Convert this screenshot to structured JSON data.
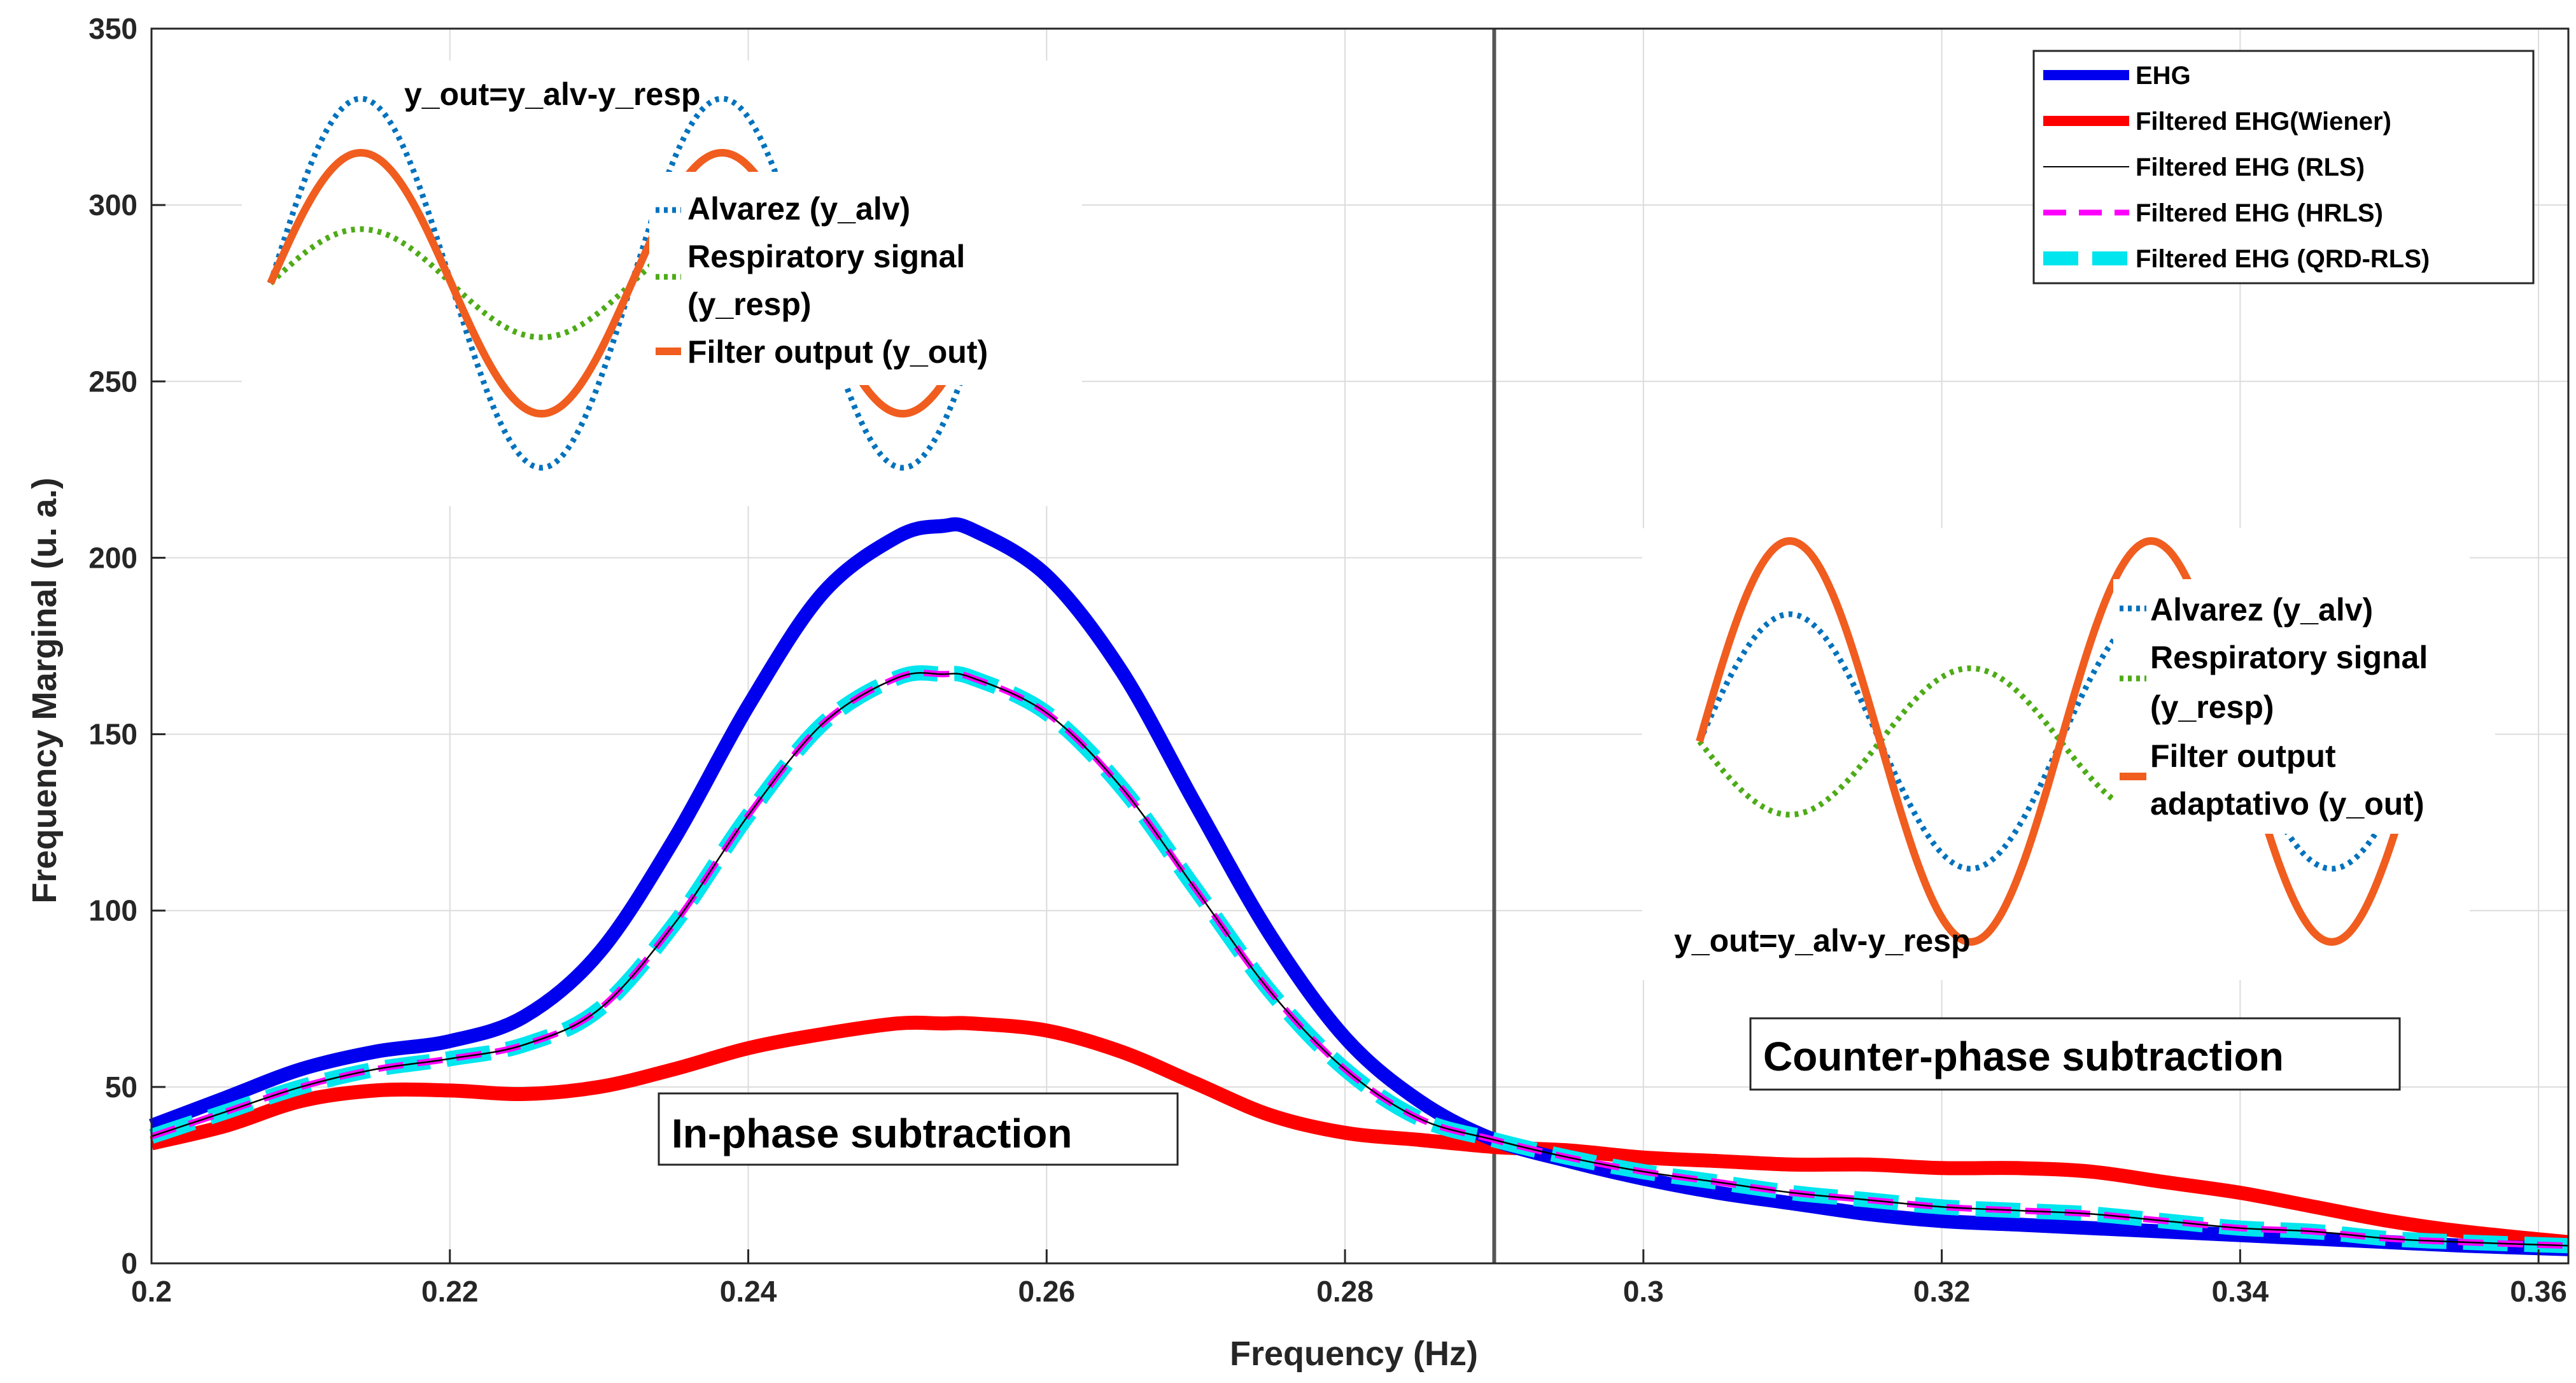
{
  "chart_data": {
    "type": "line",
    "xlabel": "Frequency (Hz)",
    "ylabel": "Frequency Marginal (u. a.)",
    "xlim": [
      0.2,
      0.362
    ],
    "ylim": [
      0,
      350
    ],
    "xticks": [
      0.2,
      0.22,
      0.24,
      0.26,
      0.28,
      0.3,
      0.32,
      0.34,
      0.36
    ],
    "xtick_labels": [
      "0.2",
      "0.22",
      "0.24",
      "0.26",
      "0.28",
      "0.3",
      "0.32",
      "0.34",
      "0.36"
    ],
    "yticks": [
      0,
      50,
      100,
      150,
      200,
      250,
      300,
      350
    ],
    "ytick_labels": [
      "0",
      "50",
      "100",
      "150",
      "200",
      "250",
      "300",
      "350"
    ],
    "grid": true,
    "vertical_line_x": 0.29,
    "legend_position": "top-right",
    "x": [
      0.2,
      0.205,
      0.21,
      0.215,
      0.22,
      0.225,
      0.23,
      0.235,
      0.24,
      0.245,
      0.25,
      0.253,
      0.255,
      0.26,
      0.265,
      0.27,
      0.275,
      0.28,
      0.285,
      0.29,
      0.295,
      0.3,
      0.305,
      0.31,
      0.315,
      0.32,
      0.325,
      0.33,
      0.335,
      0.34,
      0.345,
      0.35,
      0.355,
      0.362
    ],
    "series": [
      {
        "name": "EHG",
        "color": "#0000ee",
        "style": "solid-thick",
        "values": [
          39,
          47,
          55,
          60,
          63,
          70,
          88,
          120,
          158,
          190,
          206,
          209,
          208,
          195,
          168,
          130,
          93,
          64,
          46,
          35,
          29,
          24,
          20,
          17,
          14,
          12,
          11,
          10,
          9,
          8,
          7,
          6,
          5,
          4
        ]
      },
      {
        "name": "Filtered EHG(Wiener)",
        "color": "#ff0000",
        "style": "solid-thick",
        "values": [
          34,
          39,
          46,
          49,
          49,
          48,
          50,
          55,
          61,
          65,
          68,
          68,
          68,
          66,
          60,
          51,
          42,
          37,
          35,
          33,
          32,
          30,
          29,
          28,
          28,
          27,
          27,
          26,
          23,
          20,
          16,
          12,
          9,
          6
        ]
      },
      {
        "name": "Filtered EHG (RLS)",
        "color": "#000000",
        "style": "solid-thin",
        "values": [
          36,
          43,
          50,
          55,
          58,
          62,
          72,
          96,
          127,
          153,
          166,
          167,
          166,
          156,
          135,
          106,
          77,
          55,
          41,
          35,
          30,
          26,
          23,
          20,
          18,
          16,
          15,
          14,
          12,
          10,
          9,
          7,
          6,
          5
        ]
      },
      {
        "name": "Filtered EHG (HRLS)",
        "color": "#ff00ff",
        "style": "dashed",
        "values": [
          36,
          43,
          50,
          55,
          58,
          62,
          72,
          96,
          127,
          153,
          166,
          167,
          166,
          156,
          135,
          106,
          77,
          55,
          41,
          35,
          30,
          26,
          23,
          20,
          18,
          16,
          15,
          14,
          12,
          10,
          9,
          7,
          6,
          5
        ]
      },
      {
        "name": "Filtered EHG (QRD-RLS)",
        "color": "#00e5ee",
        "style": "dashed-thick",
        "values": [
          36,
          43,
          50,
          55,
          58,
          62,
          72,
          96,
          127,
          153,
          166,
          167,
          166,
          156,
          135,
          106,
          77,
          55,
          41,
          35,
          30,
          26,
          23,
          20,
          18,
          16,
          15,
          14,
          12,
          10,
          9,
          7,
          6,
          5
        ]
      }
    ],
    "annotations": {
      "in_phase": "In-phase subtraction",
      "counter_phase": "Counter-phase subtraction"
    },
    "insets": [
      {
        "name": "in-phase-inset",
        "title": "y_out=y_alv-y_resp",
        "legend": [
          "Alvarez (y_alv)",
          "Respiratory signal",
          "(y_resp)",
          "Filter output (y_out)"
        ],
        "phase": "in-phase"
      },
      {
        "name": "counter-phase-inset",
        "title": "y_out=y_alv-y_resp",
        "legend": [
          "Alvarez (y_alv)",
          "Respiratory signal",
          " (y_resp)",
          "Filter output",
          "adaptativo (y_out)"
        ],
        "phase": "counter-phase"
      }
    ]
  },
  "colors": {
    "inset_alvarez": "#0072bd",
    "inset_resp": "#4dab17",
    "inset_out": "#f05d1f",
    "axis": "#262626",
    "grid": "#dcdcdc",
    "vline": "#555555"
  }
}
